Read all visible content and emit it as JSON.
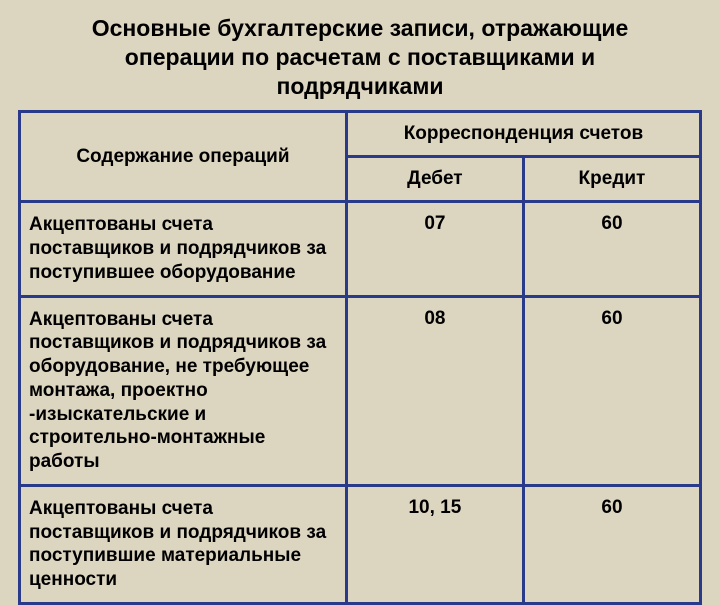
{
  "title": "Основные бухгалтерские записи, отражающие операции по расчетам с поставщиками и подрядчиками",
  "colors": {
    "border": "#2a3a8a",
    "background": "#dcd5c0",
    "text": "#000000"
  },
  "typography": {
    "title_fontsize": 23,
    "cell_fontsize": 19,
    "font_family": "Arial",
    "title_weight": "bold",
    "cell_weight": "bold"
  },
  "table": {
    "column_widths_percent": [
      48,
      26,
      26
    ],
    "headers": {
      "col1": "Содержание операций",
      "col2_span": "Корреспонденция счетов",
      "sub_debit": "Дебет",
      "sub_credit": "Кредит"
    },
    "rows": [
      {
        "desc": "Акцептованы счета поставщиков и подрядчиков за поступившее оборудование",
        "debit": "07",
        "credit": "60"
      },
      {
        "desc": "Акцептованы счета поставщиков и подрядчиков за оборудование, не требующее монтажа, проектно -изыскательские и строительно-монтажные работы",
        "debit": "08",
        "credit": "60"
      },
      {
        "desc": "Акцептованы счета поставщиков и подрядчиков за поступившие материальные ценности",
        "debit": "10, 15",
        "credit": "60"
      }
    ]
  }
}
